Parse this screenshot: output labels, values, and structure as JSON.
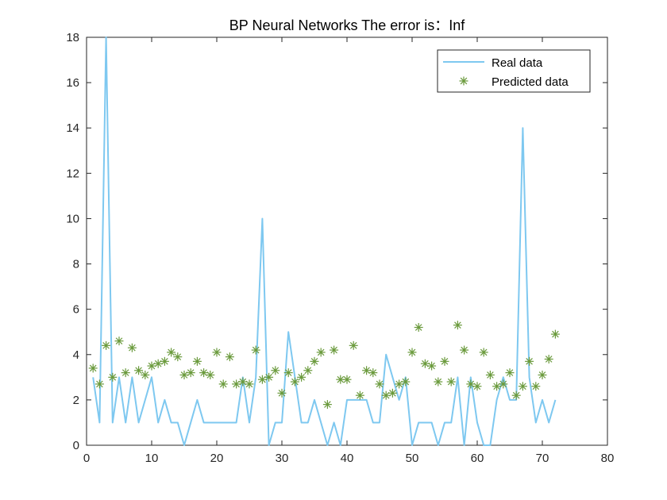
{
  "chart_data": {
    "type": "line",
    "title": "BP Neural Networks   The error is：Inf",
    "xlabel": "",
    "ylabel": "",
    "xlim": [
      0,
      80
    ],
    "ylim": [
      0,
      18
    ],
    "xticks": [
      0,
      10,
      20,
      30,
      40,
      50,
      60,
      70,
      80
    ],
    "yticks": [
      0,
      2,
      4,
      6,
      8,
      10,
      12,
      14,
      16,
      18
    ],
    "grid": false,
    "legend_position": "top-right",
    "series": [
      {
        "name": "Real data",
        "style": "line",
        "color": "#7ec8f0",
        "x": [
          1,
          2,
          3,
          4,
          5,
          6,
          7,
          8,
          9,
          10,
          11,
          12,
          13,
          14,
          15,
          16,
          17,
          18,
          19,
          20,
          21,
          22,
          23,
          24,
          25,
          26,
          27,
          28,
          29,
          30,
          31,
          32,
          33,
          34,
          35,
          36,
          37,
          38,
          39,
          40,
          41,
          42,
          43,
          44,
          45,
          46,
          47,
          48,
          49,
          50,
          51,
          52,
          53,
          54,
          55,
          56,
          57,
          58,
          59,
          60,
          61,
          62,
          63,
          64,
          65,
          66,
          67,
          68,
          69,
          70,
          71,
          72
        ],
        "y": [
          3,
          1,
          18,
          1,
          3,
          1,
          3,
          1,
          2,
          3,
          1,
          2,
          1,
          1,
          0,
          1,
          2,
          1,
          1,
          1,
          1,
          1,
          1,
          3,
          1,
          3,
          10,
          0,
          1,
          1,
          5,
          3,
          1,
          1,
          2,
          1,
          0,
          1,
          0,
          2,
          2,
          2,
          2,
          1,
          1,
          4,
          3,
          2,
          3,
          0,
          1,
          1,
          1,
          0,
          1,
          1,
          3,
          0,
          3,
          1,
          0,
          0,
          2,
          3,
          2,
          2,
          14,
          3,
          1,
          2,
          1,
          2
        ]
      },
      {
        "name": "Predicted data",
        "style": "marker",
        "marker": "asterisk",
        "color": "#6a9a3c",
        "x": [
          1,
          2,
          3,
          4,
          5,
          6,
          7,
          8,
          9,
          10,
          11,
          12,
          13,
          14,
          15,
          16,
          17,
          18,
          19,
          20,
          21,
          22,
          23,
          24,
          25,
          26,
          27,
          28,
          29,
          30,
          31,
          32,
          33,
          34,
          35,
          36,
          37,
          38,
          39,
          40,
          41,
          42,
          43,
          44,
          45,
          46,
          47,
          48,
          49,
          50,
          51,
          52,
          53,
          54,
          55,
          56,
          57,
          58,
          59,
          60,
          61,
          62,
          63,
          64,
          65,
          66,
          67,
          68,
          69,
          70,
          71,
          72
        ],
        "y": [
          3.4,
          2.7,
          4.4,
          3.0,
          4.6,
          3.2,
          4.3,
          3.3,
          3.1,
          3.5,
          3.6,
          3.7,
          4.1,
          3.9,
          3.1,
          3.2,
          3.7,
          3.2,
          3.1,
          4.1,
          2.7,
          3.9,
          2.7,
          2.8,
          2.7,
          4.2,
          2.9,
          3.0,
          3.3,
          2.3,
          3.2,
          2.8,
          3.0,
          3.3,
          3.7,
          4.1,
          1.8,
          4.2,
          2.9,
          2.9,
          4.4,
          2.2,
          3.3,
          3.2,
          2.7,
          2.2,
          2.3,
          2.7,
          2.8,
          4.1,
          5.2,
          3.6,
          3.5,
          2.8,
          3.7,
          2.8,
          5.3,
          4.2,
          2.7,
          2.6,
          4.1,
          3.1,
          2.6,
          2.7,
          3.2,
          2.2,
          2.6,
          3.7,
          2.6,
          3.1,
          3.8,
          4.9
        ]
      }
    ]
  }
}
